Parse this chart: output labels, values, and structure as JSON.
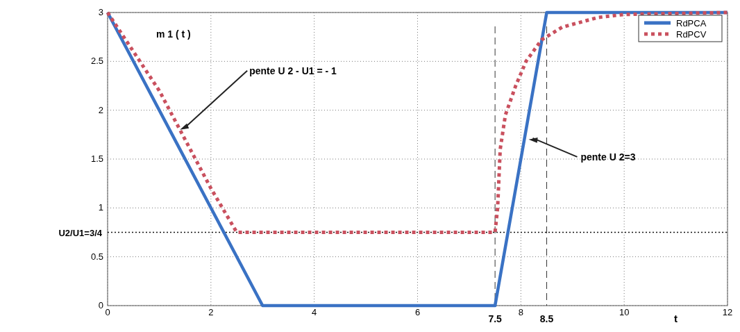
{
  "chart_data": {
    "type": "line",
    "xlabel": "t",
    "xlim": [
      0,
      12
    ],
    "ylim": [
      0,
      3
    ],
    "xticks": [
      0,
      2,
      4,
      6,
      8,
      10,
      12
    ],
    "yticks": [
      0,
      0.5,
      1,
      1.5,
      2,
      2.5,
      3
    ],
    "grid": true,
    "legend": "top right",
    "series": [
      {
        "name": "RdPCA",
        "color": "#3a72c4",
        "line_style": "solid",
        "x": [
          0,
          3,
          7.5,
          8.5,
          12
        ],
        "values": [
          3,
          0,
          0,
          3,
          3
        ]
      },
      {
        "name": "RdPCV",
        "color": "#c9505e",
        "line_style": "dotted",
        "x": [
          0,
          0.5,
          1,
          1.4,
          2,
          2.5,
          7.5,
          7.55,
          7.6,
          7.7,
          7.9,
          8.1,
          8.4,
          8.8,
          9.5,
          10,
          12
        ],
        "values": [
          3,
          2.6,
          2.2,
          1.8,
          1.2,
          0.75,
          0.75,
          1.0,
          1.6,
          1.95,
          2.25,
          2.5,
          2.72,
          2.85,
          2.95,
          2.98,
          3
        ]
      }
    ],
    "ref_lines": [
      {
        "axis": "x",
        "value": 7.5,
        "label": "7.5",
        "line_style": "dashed"
      },
      {
        "axis": "x",
        "value": 8.5,
        "label": "8.5",
        "line_style": "dashed"
      },
      {
        "axis": "y",
        "value": 0.75,
        "label": "U2/U1=3/4",
        "line_style": "dotted"
      }
    ],
    "annotations": [
      "m 1 ( t )",
      {
        "text": "pente U 2 - U1 = - 1",
        "x": 1.4,
        "y": 1.8
      },
      {
        "text": "pente U 2=3",
        "x": 8.15,
        "y": 1.7
      }
    ]
  }
}
